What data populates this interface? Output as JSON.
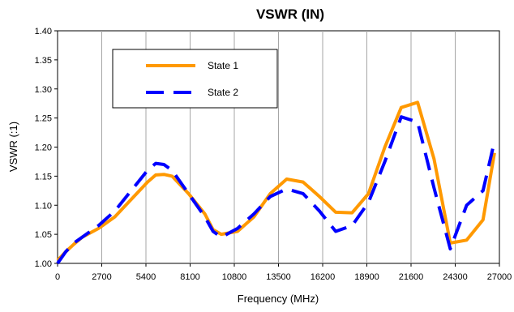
{
  "chart_data": {
    "type": "line",
    "title": "VSWR (IN)",
    "xlabel": "Frequency (MHz)",
    "ylabel": "VSWR (:1)",
    "xlim": [
      0,
      27000
    ],
    "ylim": [
      1.0,
      1.4
    ],
    "xticks": [
      "0",
      "2700",
      "5400",
      "8100",
      "10800",
      "13500",
      "16200",
      "18900",
      "21600",
      "24300",
      "27000"
    ],
    "yticks": [
      "1.00",
      "1.05",
      "1.10",
      "1.15",
      "1.20",
      "1.25",
      "1.30",
      "1.35",
      "1.40"
    ],
    "grid": "vertical",
    "legend_position": "top-left",
    "series": [
      {
        "name": "State 1",
        "color": "#FF9900",
        "dash": "solid",
        "x": [
          0,
          500,
          1000,
          1500,
          2500,
          3500,
          4500,
          5500,
          6000,
          6500,
          7000,
          8000,
          9000,
          9500,
          10000,
          11000,
          12000,
          13000,
          14000,
          15000,
          16000,
          17000,
          18000,
          19000,
          20000,
          21000,
          22000,
          23000,
          24000,
          25000,
          26000,
          26700
        ],
        "y": [
          1.005,
          1.02,
          1.033,
          1.045,
          1.06,
          1.08,
          1.11,
          1.14,
          1.152,
          1.153,
          1.15,
          1.12,
          1.085,
          1.058,
          1.05,
          1.055,
          1.08,
          1.12,
          1.145,
          1.14,
          1.115,
          1.088,
          1.087,
          1.12,
          1.2,
          1.268,
          1.277,
          1.18,
          1.035,
          1.04,
          1.075,
          1.19
        ]
      },
      {
        "name": "State 2",
        "color": "#0000FF",
        "dash": "long-dash",
        "x": [
          0,
          500,
          1000,
          1500,
          2500,
          3500,
          4500,
          5500,
          6000,
          6500,
          7000,
          8000,
          9000,
          9500,
          10000,
          11000,
          12000,
          13000,
          14000,
          15000,
          16000,
          17000,
          18000,
          19000,
          20000,
          21000,
          22000,
          23000,
          24000,
          25000,
          26000,
          26700
        ],
        "y": [
          1.0,
          1.02,
          1.035,
          1.045,
          1.065,
          1.09,
          1.125,
          1.16,
          1.172,
          1.17,
          1.16,
          1.12,
          1.08,
          1.055,
          1.045,
          1.06,
          1.085,
          1.115,
          1.128,
          1.12,
          1.09,
          1.055,
          1.065,
          1.105,
          1.175,
          1.252,
          1.243,
          1.13,
          1.025,
          1.1,
          1.125,
          1.21
        ]
      }
    ]
  }
}
